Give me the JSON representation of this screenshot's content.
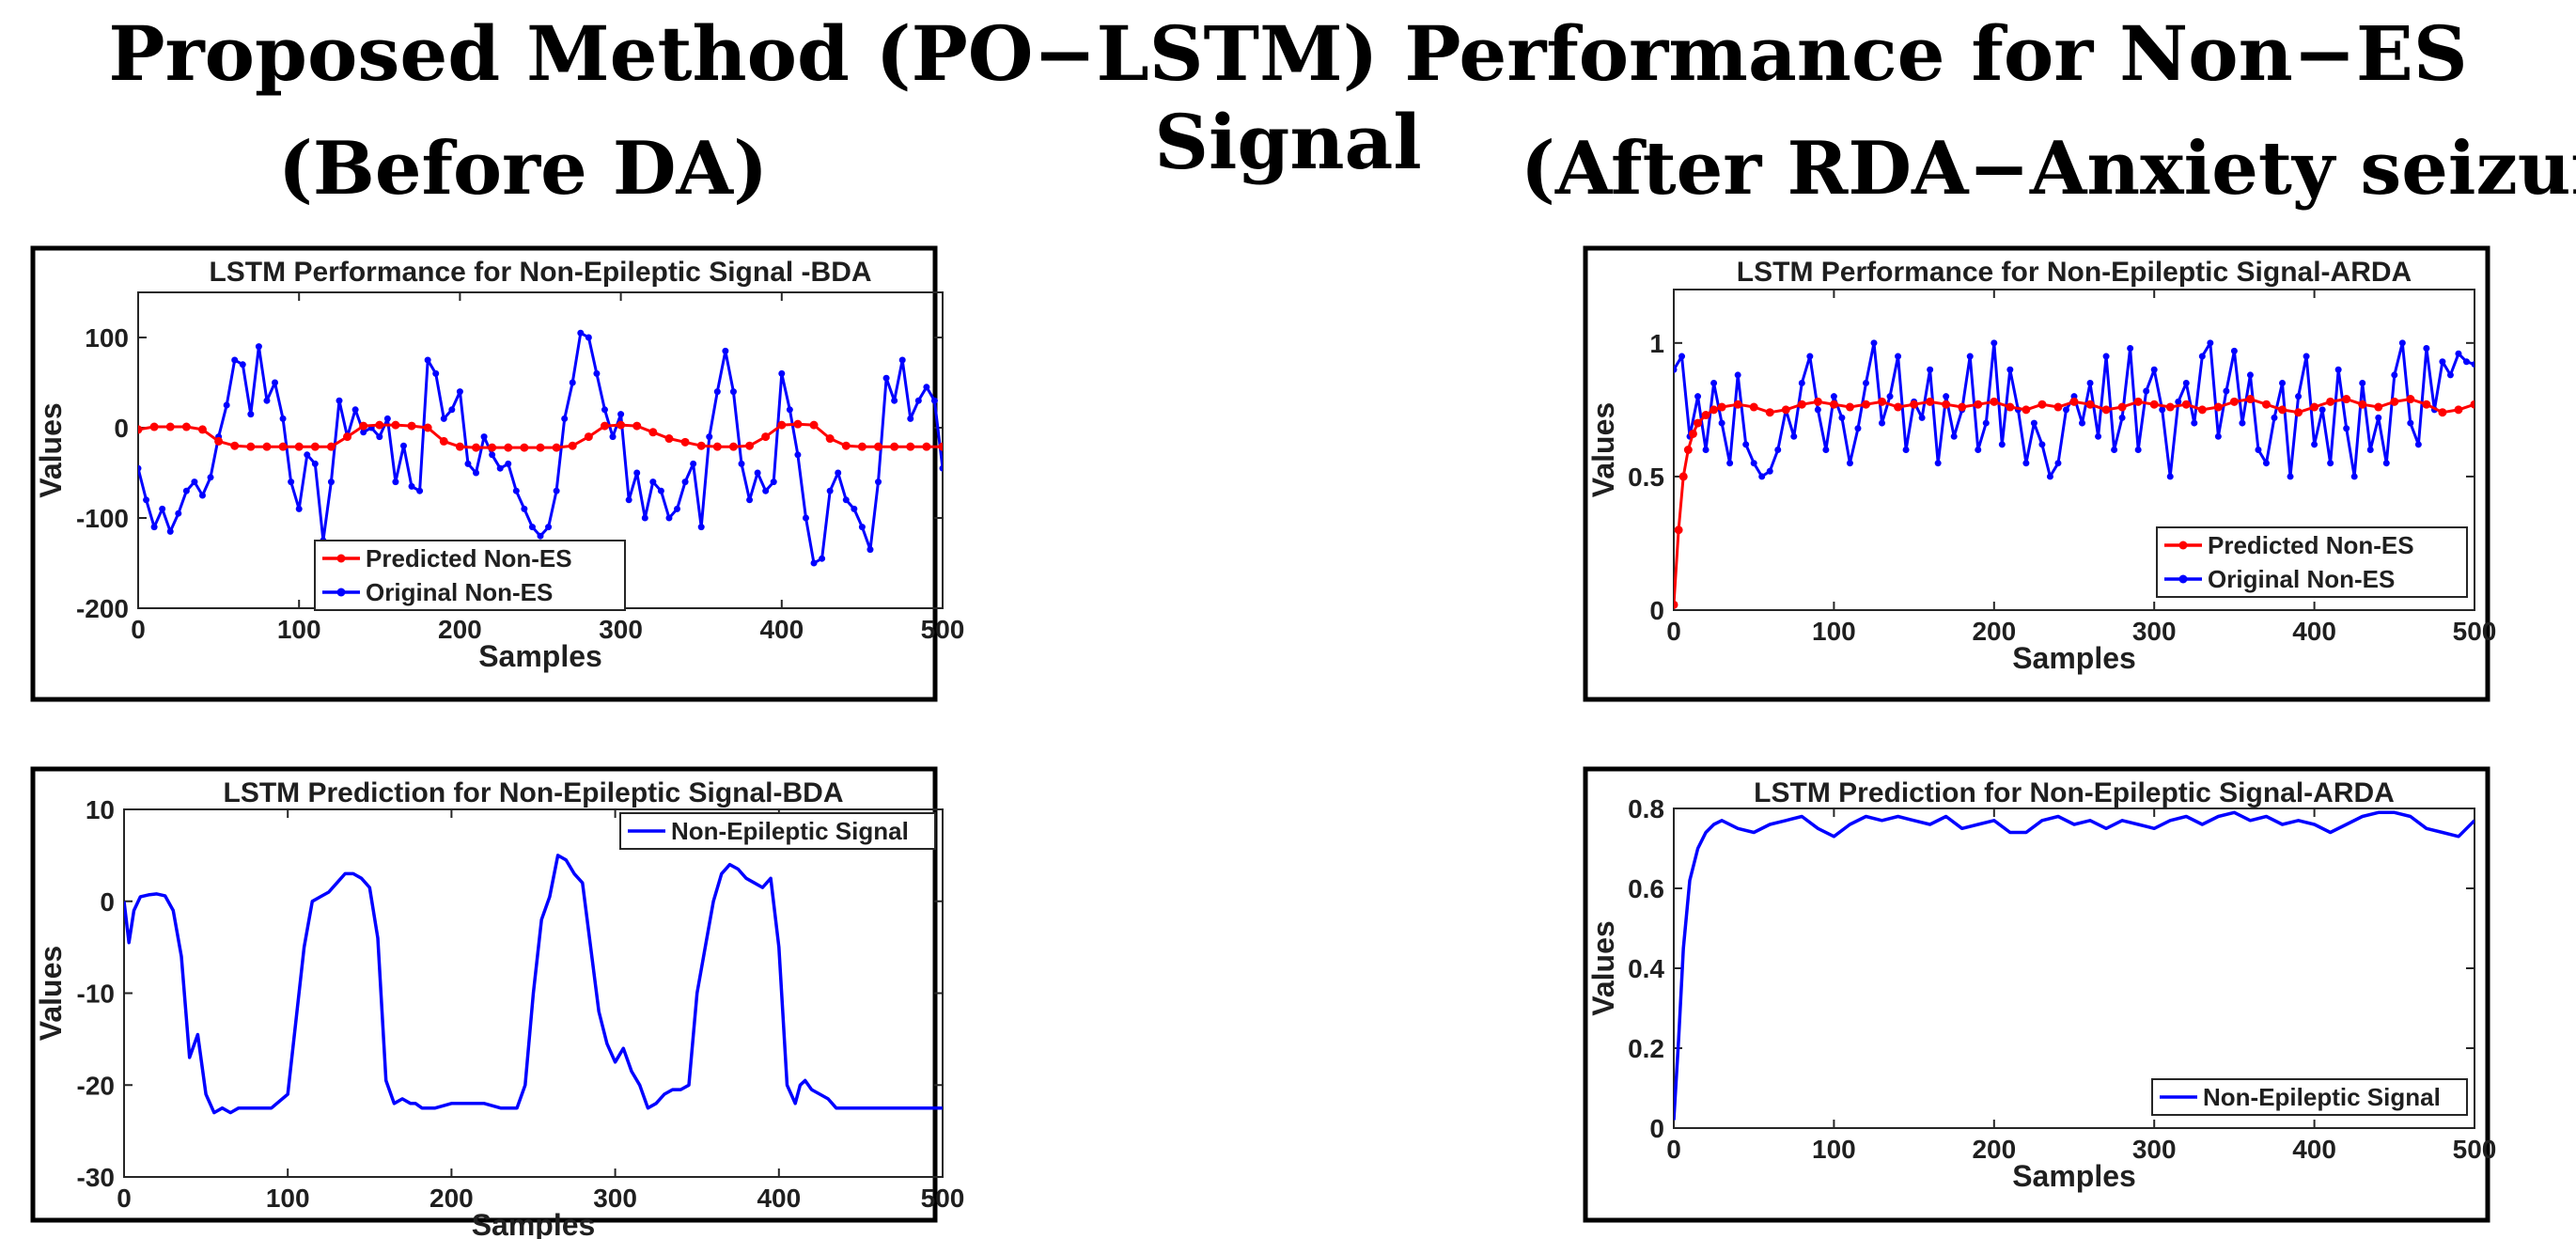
{
  "figure": {
    "title": "Proposed Method (PO−LSTM) Performance for Non−ES Signal",
    "left_subtitle": "(Before DA)",
    "right_subtitle": "(After RDA−Anxiety seizure)"
  },
  "chart_data": [
    {
      "id": "bda-performance",
      "type": "line",
      "title": "LSTM Performance for Non-Epileptic Signal -BDA",
      "xlabel": "Samples",
      "ylabel": "Values",
      "xlim": [
        0,
        500
      ],
      "ylim": [
        -200,
        150
      ],
      "xticks": [
        0,
        100,
        200,
        300,
        400,
        500
      ],
      "yticks": [
        -200,
        -100,
        0,
        100
      ],
      "legend_position": "bottom-center",
      "series": [
        {
          "name": "Predicted Non-ES",
          "color": "#ff0000",
          "marker": true,
          "x": [
            0,
            10,
            20,
            30,
            40,
            50,
            60,
            70,
            80,
            90,
            100,
            110,
            120,
            130,
            140,
            150,
            160,
            170,
            180,
            190,
            200,
            210,
            220,
            230,
            240,
            250,
            260,
            270,
            280,
            290,
            300,
            310,
            320,
            330,
            340,
            350,
            360,
            370,
            380,
            390,
            400,
            410,
            420,
            430,
            440,
            450,
            460,
            470,
            480,
            490,
            500
          ],
          "y": [
            -2,
            1,
            1,
            1,
            -2,
            -15,
            -20,
            -21,
            -21,
            -21,
            -21,
            -21,
            -21,
            -10,
            2,
            3,
            3,
            2,
            0,
            -15,
            -21,
            -22,
            -22,
            -22,
            -22,
            -22,
            -22,
            -20,
            -10,
            2,
            3,
            2,
            -5,
            -12,
            -16,
            -20,
            -21,
            -21,
            -20,
            -10,
            3,
            4,
            3,
            -12,
            -20,
            -21,
            -21,
            -21,
            -21,
            -21,
            -21
          ]
        },
        {
          "name": "Original Non-ES",
          "color": "#0000ff",
          "marker": true,
          "x": [
            0,
            5,
            10,
            15,
            20,
            25,
            30,
            35,
            40,
            45,
            50,
            55,
            60,
            65,
            70,
            75,
            80,
            85,
            90,
            95,
            100,
            105,
            110,
            115,
            120,
            125,
            130,
            135,
            140,
            145,
            150,
            155,
            160,
            165,
            170,
            175,
            180,
            185,
            190,
            195,
            200,
            205,
            210,
            215,
            220,
            225,
            230,
            235,
            240,
            245,
            250,
            255,
            260,
            265,
            270,
            275,
            280,
            285,
            290,
            295,
            300,
            305,
            310,
            315,
            320,
            325,
            330,
            335,
            340,
            345,
            350,
            355,
            360,
            365,
            370,
            375,
            380,
            385,
            390,
            395,
            400,
            405,
            410,
            415,
            420,
            425,
            430,
            435,
            440,
            445,
            450,
            455,
            460,
            465,
            470,
            475,
            480,
            485,
            490,
            495,
            500
          ],
          "y": [
            -45,
            -80,
            -110,
            -90,
            -115,
            -95,
            -70,
            -60,
            -75,
            -55,
            -10,
            25,
            75,
            70,
            15,
            90,
            30,
            50,
            10,
            -60,
            -90,
            -30,
            -40,
            -125,
            -60,
            30,
            -10,
            20,
            -5,
            0,
            -10,
            10,
            -60,
            -20,
            -65,
            -70,
            75,
            60,
            10,
            20,
            40,
            -40,
            -50,
            -10,
            -30,
            -45,
            -40,
            -70,
            -90,
            -110,
            -120,
            -110,
            -70,
            10,
            50,
            105,
            100,
            60,
            20,
            -10,
            15,
            -80,
            -50,
            -100,
            -60,
            -70,
            -100,
            -90,
            -60,
            -40,
            -110,
            -10,
            40,
            85,
            40,
            -40,
            -80,
            -50,
            -70,
            -60,
            60,
            20,
            -30,
            -100,
            -150,
            -145,
            -70,
            -50,
            -80,
            -90,
            -110,
            -135,
            -60,
            55,
            30,
            75,
            10,
            30,
            45,
            30,
            -45
          ]
        }
      ]
    },
    {
      "id": "arda-performance",
      "type": "line",
      "title": "LSTM Performance for Non-Epileptic Signal-ARDA",
      "xlabel": "Samples",
      "ylabel": "Values",
      "xlim": [
        0,
        500
      ],
      "ylim": [
        0,
        1.2
      ],
      "xticks": [
        0,
        100,
        200,
        300,
        400,
        500
      ],
      "yticks": [
        0,
        0.5,
        1
      ],
      "legend_position": "bottom-right",
      "series": [
        {
          "name": "Predicted Non-ES",
          "color": "#ff0000",
          "marker": true,
          "x": [
            0,
            3,
            6,
            9,
            12,
            15,
            20,
            25,
            30,
            40,
            50,
            60,
            70,
            80,
            90,
            100,
            110,
            120,
            130,
            140,
            150,
            160,
            170,
            180,
            190,
            200,
            210,
            220,
            230,
            240,
            250,
            260,
            270,
            280,
            290,
            300,
            310,
            320,
            330,
            340,
            350,
            360,
            370,
            380,
            390,
            400,
            410,
            420,
            430,
            440,
            450,
            460,
            470,
            480,
            490,
            500
          ],
          "y": [
            0.02,
            0.3,
            0.5,
            0.6,
            0.66,
            0.7,
            0.73,
            0.75,
            0.76,
            0.77,
            0.76,
            0.74,
            0.75,
            0.77,
            0.78,
            0.77,
            0.76,
            0.77,
            0.78,
            0.76,
            0.77,
            0.78,
            0.77,
            0.76,
            0.77,
            0.78,
            0.76,
            0.75,
            0.77,
            0.76,
            0.78,
            0.77,
            0.75,
            0.76,
            0.78,
            0.77,
            0.76,
            0.77,
            0.75,
            0.76,
            0.78,
            0.79,
            0.77,
            0.75,
            0.74,
            0.76,
            0.78,
            0.79,
            0.77,
            0.76,
            0.78,
            0.79,
            0.77,
            0.74,
            0.75,
            0.77
          ]
        },
        {
          "name": "Original Non-ES",
          "color": "#0000ff",
          "marker": true,
          "x": [
            0,
            5,
            10,
            15,
            20,
            25,
            30,
            35,
            40,
            45,
            50,
            55,
            60,
            65,
            70,
            75,
            80,
            85,
            90,
            95,
            100,
            105,
            110,
            115,
            120,
            125,
            130,
            135,
            140,
            145,
            150,
            155,
            160,
            165,
            170,
            175,
            180,
            185,
            190,
            195,
            200,
            205,
            210,
            215,
            220,
            225,
            230,
            235,
            240,
            245,
            250,
            255,
            260,
            265,
            270,
            275,
            280,
            285,
            290,
            295,
            300,
            305,
            310,
            315,
            320,
            325,
            330,
            335,
            340,
            345,
            350,
            355,
            360,
            365,
            370,
            375,
            380,
            385,
            390,
            395,
            400,
            405,
            410,
            415,
            420,
            425,
            430,
            435,
            440,
            445,
            450,
            455,
            460,
            465,
            470,
            475,
            480,
            485,
            490,
            495,
            500
          ],
          "y": [
            0.9,
            0.95,
            0.65,
            0.8,
            0.6,
            0.85,
            0.7,
            0.55,
            0.88,
            0.62,
            0.55,
            0.5,
            0.52,
            0.6,
            0.75,
            0.65,
            0.85,
            0.95,
            0.75,
            0.6,
            0.8,
            0.72,
            0.55,
            0.68,
            0.85,
            1.0,
            0.7,
            0.8,
            0.95,
            0.6,
            0.78,
            0.72,
            0.9,
            0.55,
            0.8,
            0.65,
            0.75,
            0.95,
            0.6,
            0.7,
            1.0,
            0.62,
            0.9,
            0.75,
            0.55,
            0.7,
            0.62,
            0.5,
            0.55,
            0.75,
            0.8,
            0.7,
            0.85,
            0.65,
            0.95,
            0.6,
            0.72,
            0.98,
            0.6,
            0.82,
            0.9,
            0.75,
            0.5,
            0.78,
            0.85,
            0.7,
            0.95,
            1.0,
            0.65,
            0.82,
            0.97,
            0.7,
            0.88,
            0.6,
            0.55,
            0.72,
            0.85,
            0.5,
            0.8,
            0.95,
            0.62,
            0.75,
            0.55,
            0.9,
            0.68,
            0.5,
            0.85,
            0.6,
            0.72,
            0.55,
            0.88,
            1.0,
            0.7,
            0.62,
            0.98,
            0.75,
            0.93,
            0.88,
            0.96,
            0.93,
            0.92
          ]
        }
      ]
    },
    {
      "id": "bda-prediction",
      "type": "line",
      "title": "LSTM Prediction for Non-Epileptic Signal-BDA",
      "xlabel": "Samples",
      "ylabel": "Values",
      "xlim": [
        0,
        500
      ],
      "ylim": [
        -30,
        10
      ],
      "xticks": [
        0,
        100,
        200,
        300,
        400,
        500
      ],
      "yticks": [
        -30,
        -20,
        -10,
        0,
        10
      ],
      "legend_position": "top-right",
      "series": [
        {
          "name": "Non-Epileptic Signal",
          "color": "#0000ff",
          "marker": false,
          "x": [
            0,
            3,
            6,
            10,
            15,
            20,
            25,
            30,
            35,
            40,
            45,
            50,
            55,
            60,
            65,
            70,
            75,
            80,
            90,
            100,
            110,
            115,
            120,
            125,
            130,
            135,
            140,
            145,
            150,
            155,
            160,
            165,
            170,
            175,
            178,
            182,
            186,
            190,
            200,
            210,
            220,
            230,
            240,
            245,
            250,
            255,
            260,
            265,
            270,
            275,
            280,
            285,
            290,
            295,
            300,
            305,
            310,
            315,
            320,
            325,
            330,
            335,
            340,
            345,
            350,
            355,
            360,
            365,
            370,
            375,
            380,
            385,
            390,
            395,
            400,
            405,
            410,
            413,
            416,
            420,
            425,
            430,
            435,
            440,
            445,
            450,
            460,
            470,
            480,
            490,
            500
          ],
          "y": [
            0,
            -4.5,
            -1,
            0.5,
            0.7,
            0.8,
            0.6,
            -1,
            -6,
            -17,
            -14.5,
            -21,
            -23,
            -22.5,
            -23,
            -22.5,
            -22.5,
            -22.5,
            -22.5,
            -21,
            -5,
            0,
            0.5,
            1,
            2,
            3,
            3,
            2.5,
            1.5,
            -4,
            -19.5,
            -22,
            -21.5,
            -22,
            -22,
            -22.5,
            -22.5,
            -22.5,
            -22,
            -22,
            -22,
            -22.5,
            -22.5,
            -20,
            -10,
            -2,
            0.5,
            5,
            4.5,
            3,
            2,
            -5,
            -12,
            -15.5,
            -17.5,
            -16,
            -18.5,
            -20,
            -22.5,
            -22,
            -21,
            -20.5,
            -20.5,
            -20,
            -10,
            -5,
            0,
            3,
            4,
            3.5,
            2.5,
            2,
            1.5,
            2.5,
            -5,
            -20,
            -22,
            -20,
            -19.5,
            -20.5,
            -21,
            -21.5,
            -22.5,
            -22.5,
            -22.5,
            -22.5,
            -22.5,
            -22.5,
            -22.5,
            -22.5,
            -22.5
          ]
        }
      ]
    },
    {
      "id": "arda-prediction",
      "type": "line",
      "title": "LSTM Prediction for Non-Epileptic Signal-ARDA",
      "xlabel": "Samples",
      "ylabel": "Values",
      "xlim": [
        0,
        500
      ],
      "ylim": [
        0,
        0.8
      ],
      "xticks": [
        0,
        100,
        200,
        300,
        400,
        500
      ],
      "yticks": [
        0,
        0.2,
        0.4,
        0.6,
        0.8
      ],
      "legend_position": "bottom-right",
      "series": [
        {
          "name": "Non-Epileptic Signal",
          "color": "#0000ff",
          "marker": false,
          "x": [
            0,
            3,
            6,
            10,
            15,
            20,
            25,
            30,
            40,
            50,
            60,
            70,
            80,
            90,
            100,
            110,
            120,
            130,
            140,
            150,
            160,
            170,
            180,
            190,
            200,
            210,
            220,
            230,
            240,
            250,
            260,
            270,
            280,
            290,
            300,
            310,
            320,
            330,
            340,
            350,
            360,
            370,
            380,
            390,
            400,
            410,
            420,
            430,
            440,
            450,
            460,
            470,
            480,
            490,
            500
          ],
          "y": [
            0.02,
            0.22,
            0.45,
            0.62,
            0.7,
            0.74,
            0.76,
            0.77,
            0.75,
            0.74,
            0.76,
            0.77,
            0.78,
            0.75,
            0.73,
            0.76,
            0.78,
            0.77,
            0.78,
            0.77,
            0.76,
            0.78,
            0.75,
            0.76,
            0.77,
            0.74,
            0.74,
            0.77,
            0.78,
            0.76,
            0.77,
            0.75,
            0.77,
            0.76,
            0.75,
            0.77,
            0.78,
            0.76,
            0.78,
            0.79,
            0.77,
            0.78,
            0.76,
            0.77,
            0.76,
            0.74,
            0.76,
            0.78,
            0.79,
            0.79,
            0.78,
            0.75,
            0.74,
            0.73,
            0.77
          ]
        }
      ]
    }
  ]
}
